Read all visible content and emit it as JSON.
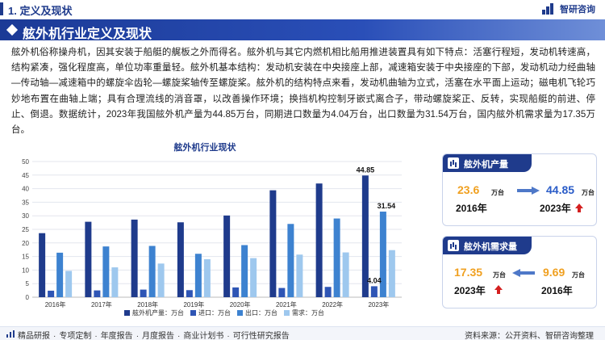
{
  "header": {
    "section_title": "1. 定义及现状",
    "brand_name": "智研咨询"
  },
  "banner": {
    "title": "舷外机行业定义及现状"
  },
  "paragraph": "舷外机俗称操舟机，因其安装于船艇的艉板之外而得名。舷外机与其它内燃机相比船用推进装置具有如下特点：活塞行程短，发动机转速高，结构紧凑，强化程度高，单位功率重量轻。舷外机基本结构：发动机安装在中央接座上部，减速箱安装于中央接座的下部，发动机动力经曲轴—传动轴—减速箱中的螺旋伞齿轮—螺旋桨轴传至螺旋桨。舷外机的结构特点来看，发动机曲轴为立式，活塞在水平面上运动；磁电机飞轮巧妙地布置在曲轴上端；具有合理流线的消音罩，以改善操作环境；换挡机构控制牙嵌式离合子，带动螺旋桨正、反转，实现船艇的前进、停止、倒退。数据统计，2023年我国舷外机产量为44.85万台，同期进口数量为4.04万台，出口数量为31.54万台，国内舷外机需求量为17.35万台。",
  "chart_data": {
    "type": "bar",
    "title": "舷外机行业现状",
    "categories": [
      "2016年",
      "2017年",
      "2018年",
      "2019年",
      "2020年",
      "2021年",
      "2022年",
      "2023年"
    ],
    "series": [
      {
        "name": "舷外机产量：万台",
        "color": "#1f3b8c",
        "values": [
          23.6,
          27.8,
          28.6,
          27.6,
          30.1,
          39.4,
          41.9,
          44.85
        ]
      },
      {
        "name": "进口：万台",
        "color": "#2e55b5",
        "values": [
          2.4,
          2.5,
          2.8,
          2.6,
          3.6,
          3.4,
          3.8,
          4.04
        ]
      },
      {
        "name": "出口：万台",
        "color": "#3d82d0",
        "values": [
          16.4,
          18.7,
          18.9,
          16.0,
          19.2,
          27.0,
          29.0,
          31.54
        ]
      },
      {
        "name": "需求：万台",
        "color": "#9ec8ee",
        "values": [
          9.7,
          11.0,
          12.4,
          14.0,
          14.4,
          15.7,
          16.5,
          17.35
        ]
      }
    ],
    "data_labels": [
      {
        "series": 0,
        "index": 7,
        "text": "44.85"
      },
      {
        "series": 1,
        "index": 7,
        "text": "4.04"
      },
      {
        "series": 2,
        "index": 7,
        "text": "31.54"
      }
    ],
    "ylim": [
      0,
      50
    ],
    "yticks": [
      0,
      5,
      10,
      15,
      20,
      25,
      30,
      35,
      40,
      45,
      50
    ],
    "grid": true,
    "legend": "bottom"
  },
  "cards": {
    "production": {
      "title": "舷外机产量",
      "left_value": "23.6",
      "left_unit": "万台",
      "left_year": "2016年",
      "right_value": "44.85",
      "right_unit": "万台",
      "right_year": "2023年"
    },
    "demand": {
      "title": "舷外机需求量",
      "left_value": "17.35",
      "left_unit": "万台",
      "left_year": "2023年",
      "right_value": "9.69",
      "right_unit": "万台",
      "right_year": "2016年"
    }
  },
  "colors": {
    "orange": "#f0a020",
    "blue_value": "#2a5cc8",
    "up_arrow": "#d42020"
  },
  "footer": {
    "items": [
      "精品研报",
      "·",
      "专项定制",
      "·",
      "年度报告",
      "·",
      "月度报告",
      "·",
      "商业计划书",
      "·",
      "可行性研究报告"
    ],
    "source": "资料来源：公开资料、智研咨询整理"
  }
}
